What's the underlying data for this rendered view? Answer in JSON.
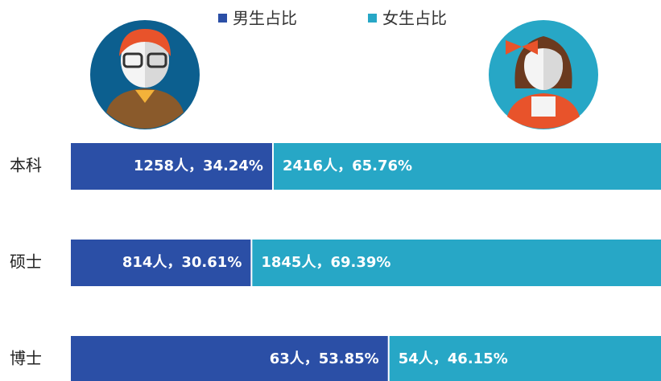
{
  "chart_data": {
    "type": "bar",
    "orientation": "horizontal",
    "stacked": true,
    "categories": [
      "本科",
      "硕士",
      "博士"
    ],
    "xlim": [
      0,
      100
    ],
    "series": [
      {
        "name": "男生占比",
        "color": "#2b4fa6",
        "values": [
          34.24,
          30.61,
          53.85
        ],
        "value_labels": [
          "1258人，34.24%",
          "814人，30.61%",
          "63人，53.85%"
        ]
      },
      {
        "name": "女生占比",
        "color": "#27a7c6",
        "values": [
          65.76,
          69.39,
          46.15
        ],
        "value_labels": [
          "2416人，65.76%",
          "1845人，69.39%",
          "54人，46.15%"
        ]
      }
    ]
  }
}
